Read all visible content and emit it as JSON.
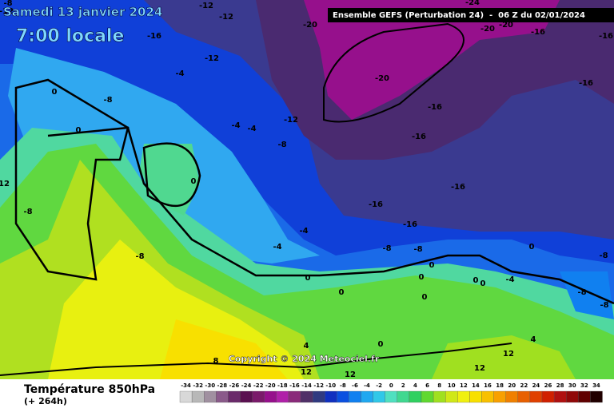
{
  "header": {
    "date": "Samedi 13 janvier 2024",
    "time": "7:00 locale",
    "model": "Ensemble GEFS (Perturbation 24)  -  06 Z du 02/01/2024"
  },
  "copyright": "Copyright © 2024 Meteociel.fr",
  "footer": {
    "title": "Température 850hPa",
    "lead": "(+ 264h)"
  },
  "map_labels": [
    -8,
    -12,
    -12,
    -12,
    -16,
    -12,
    -20,
    -24,
    -20,
    -20,
    -16,
    -16,
    -20,
    -16,
    -16,
    -12,
    -16,
    -8,
    -16,
    -16,
    -16,
    -4,
    -8,
    0,
    0,
    -4,
    -4,
    0,
    -8,
    12,
    -4,
    -4,
    -8,
    -8,
    -8,
    0,
    0,
    0,
    0,
    0,
    -4,
    0,
    -8,
    -8,
    -8,
    0,
    0,
    0,
    4,
    4,
    12,
    12,
    12,
    12,
    8
  ],
  "scale": {
    "values": [
      -34,
      -32,
      -30,
      -28,
      -26,
      -24,
      -22,
      -20,
      -18,
      -16,
      -14,
      -12,
      -10,
      -8,
      -6,
      -4,
      -2,
      0,
      2,
      4,
      6,
      8,
      10,
      12,
      14,
      16,
      18,
      20,
      22,
      24,
      26,
      28,
      30,
      32,
      34
    ],
    "colors": [
      "#d8d8d8",
      "#b8b8b8",
      "#a090a0",
      "#8a5a8a",
      "#6a2a6a",
      "#5a1050",
      "#7a1a6a",
      "#96108c",
      "#b020a8",
      "#8a2a7a",
      "#503068",
      "#303a80",
      "#1030c0",
      "#0a50e0",
      "#1080f0",
      "#20a8f0",
      "#30c8e8",
      "#50e0c0",
      "#40d890",
      "#30d060",
      "#60d830",
      "#a0e020",
      "#d0e818",
      "#f0f010",
      "#f8e000",
      "#f8c000",
      "#f8a000",
      "#f08000",
      "#e86000",
      "#e04000",
      "#d02000",
      "#b01010",
      "#900808",
      "#600000",
      "#200000"
    ]
  }
}
